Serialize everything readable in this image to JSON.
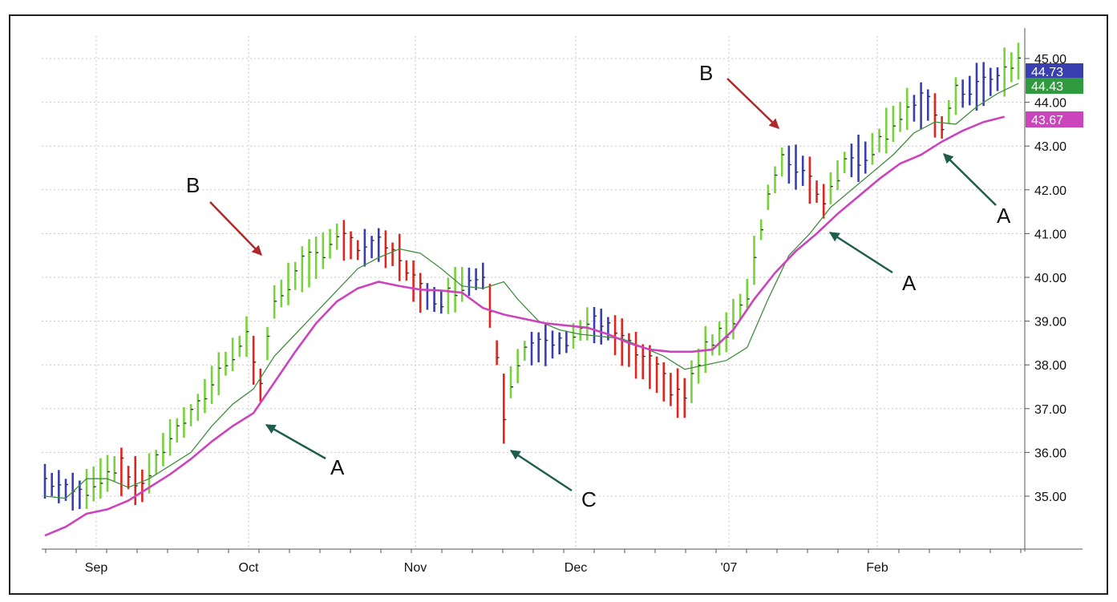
{
  "chart_data": {
    "type": "bar",
    "subtype": "ohlc",
    "title": "",
    "xlabel": "",
    "ylabel": "",
    "ylim": [
      34.1,
      45.3
    ],
    "grid": true,
    "x_tick_labels": [
      "Sep",
      "Oct",
      "Nov",
      "Dec",
      "'07",
      "Feb"
    ],
    "y_tick_labels": [
      "35.00",
      "36.00",
      "37.00",
      "38.00",
      "39.00",
      "40.00",
      "41.00",
      "42.00",
      "43.00",
      "44.00",
      "45.00"
    ],
    "y_ticks": [
      35,
      36,
      37,
      38,
      39,
      40,
      41,
      42,
      43,
      44,
      45
    ],
    "bar_colors": {
      "up": "#78d23c",
      "down": "#e0241e",
      "neutral": "#3a3fb0"
    },
    "series": [
      {
        "key": "fast_ma",
        "color": "#3f8f3f",
        "points": [
          [
            0,
            35.0
          ],
          [
            3,
            34.95
          ],
          [
            6,
            35.4
          ],
          [
            9,
            35.4
          ],
          [
            12,
            35.2
          ],
          [
            15,
            35.4
          ],
          [
            18,
            35.7
          ],
          [
            21,
            36.0
          ],
          [
            24,
            36.6
          ],
          [
            27,
            37.1
          ],
          [
            30,
            37.45
          ],
          [
            33,
            38.2
          ],
          [
            36,
            38.7
          ],
          [
            39,
            39.2
          ],
          [
            42,
            39.7
          ],
          [
            45,
            40.2
          ],
          [
            48,
            40.45
          ],
          [
            51,
            40.65
          ],
          [
            54,
            40.55
          ],
          [
            57,
            40.2
          ],
          [
            60,
            39.8
          ],
          [
            63,
            39.75
          ],
          [
            66,
            39.9
          ],
          [
            68,
            39.5
          ],
          [
            71,
            39.0
          ],
          [
            74,
            38.8
          ],
          [
            77,
            38.7
          ],
          [
            80,
            38.65
          ],
          [
            83,
            38.6
          ],
          [
            86,
            38.4
          ],
          [
            89,
            38.2
          ],
          [
            92,
            37.9
          ],
          [
            95,
            38.0
          ],
          [
            98,
            38.1
          ],
          [
            101,
            38.4
          ],
          [
            104,
            39.5
          ],
          [
            107,
            40.5
          ],
          [
            110,
            41.0
          ],
          [
            113,
            41.6
          ],
          [
            116,
            42.0
          ],
          [
            119,
            42.4
          ],
          [
            122,
            42.8
          ],
          [
            125,
            43.3
          ],
          [
            128,
            43.55
          ],
          [
            131,
            43.5
          ],
          [
            134,
            43.9
          ],
          [
            137,
            44.2
          ],
          [
            140,
            44.43
          ]
        ]
      },
      {
        "key": "slow_ma",
        "color": "#cc44bb",
        "points": [
          [
            0,
            34.1
          ],
          [
            3,
            34.3
          ],
          [
            6,
            34.6
          ],
          [
            9,
            34.7
          ],
          [
            12,
            34.9
          ],
          [
            15,
            35.2
          ],
          [
            18,
            35.5
          ],
          [
            21,
            35.85
          ],
          [
            24,
            36.25
          ],
          [
            27,
            36.6
          ],
          [
            30,
            36.9
          ],
          [
            33,
            37.6
          ],
          [
            36,
            38.3
          ],
          [
            39,
            38.95
          ],
          [
            42,
            39.45
          ],
          [
            45,
            39.75
          ],
          [
            48,
            39.9
          ],
          [
            51,
            39.8
          ],
          [
            54,
            39.72
          ],
          [
            57,
            39.7
          ],
          [
            60,
            39.65
          ],
          [
            63,
            39.3
          ],
          [
            66,
            39.15
          ],
          [
            69,
            39.05
          ],
          [
            72,
            38.95
          ],
          [
            75,
            38.9
          ],
          [
            78,
            38.85
          ],
          [
            81,
            38.7
          ],
          [
            84,
            38.5
          ],
          [
            87,
            38.35
          ],
          [
            90,
            38.3
          ],
          [
            93,
            38.3
          ],
          [
            96,
            38.35
          ],
          [
            99,
            38.8
          ],
          [
            102,
            39.5
          ],
          [
            105,
            40.1
          ],
          [
            108,
            40.6
          ],
          [
            111,
            41.0
          ],
          [
            114,
            41.45
          ],
          [
            117,
            41.85
          ],
          [
            120,
            42.25
          ],
          [
            123,
            42.6
          ],
          [
            126,
            42.8
          ],
          [
            129,
            43.1
          ],
          [
            132,
            43.35
          ],
          [
            135,
            43.55
          ],
          [
            138,
            43.67
          ]
        ]
      }
    ],
    "price_badges": [
      {
        "value": 44.73,
        "label": "44.73",
        "color": "#3a3fb0"
      },
      {
        "value": 44.43,
        "label": "44.43",
        "color": "#2f9a3e"
      },
      {
        "value": 43.67,
        "label": "43.67",
        "color": "#cc44bb"
      }
    ],
    "annotations": [
      {
        "label": "B",
        "arrow_color": "#b0282a"
      },
      {
        "label": "A",
        "arrow_color": "#1f5e4a"
      },
      {
        "label": "C",
        "arrow_color": "#1f5e4a"
      },
      {
        "label": "B",
        "arrow_color": "#b0282a"
      },
      {
        "label": "A",
        "arrow_color": "#1f5e4a"
      },
      {
        "label": "A",
        "arrow_color": "#1f5e4a"
      }
    ]
  }
}
